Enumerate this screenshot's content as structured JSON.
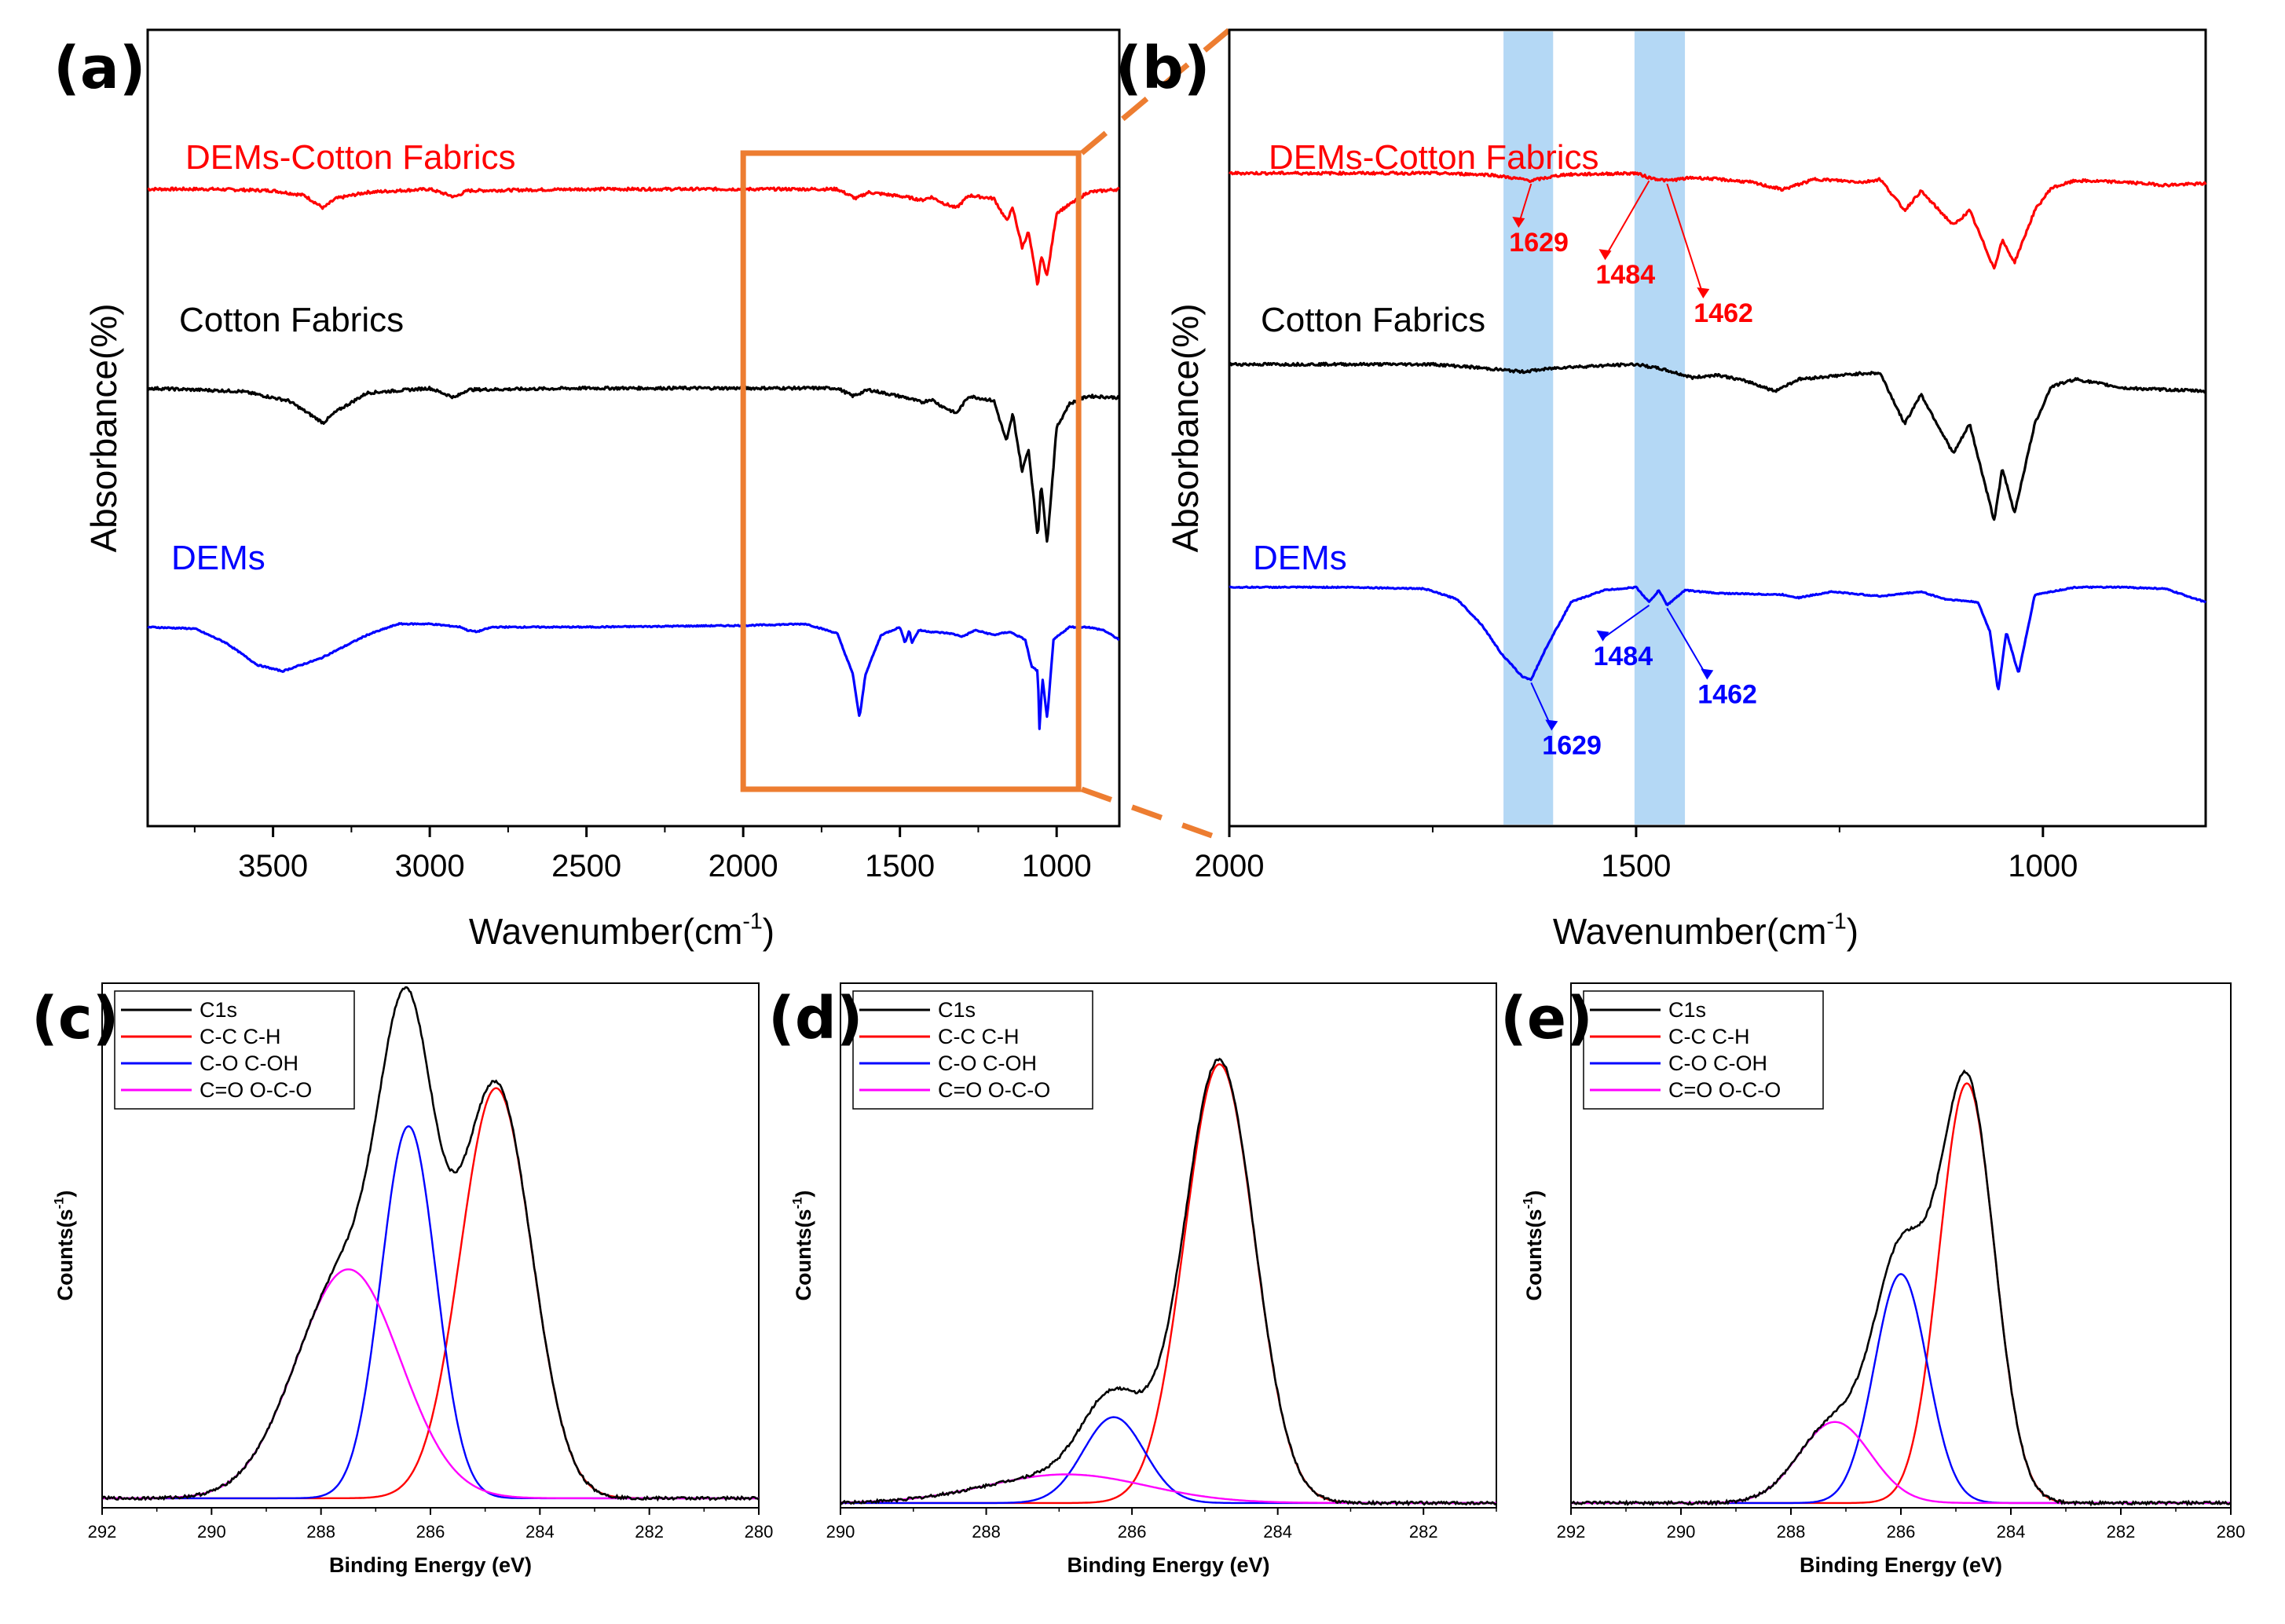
{
  "chart_data": [
    {
      "id": "a",
      "type": "line",
      "panel_label": "(a)",
      "title": "",
      "xlabel": "Wavenumber(cm",
      "xlabel_sup": "-1",
      "xlabel_suffix": ")",
      "ylabel": "Absorbance(%)",
      "xlim": [
        3900,
        800
      ],
      "xticks": [
        3500,
        3000,
        2500,
        2000,
        1500,
        1000
      ],
      "grid": false,
      "inset_box": {
        "x": [
          2000,
          930
        ],
        "color": "#ed7d31"
      },
      "series": [
        {
          "name": "DEMs-Cotton Fabrics",
          "color": "#ff0000",
          "offset": 0.8,
          "points": [
            [
              3900,
              0
            ],
            [
              3700,
              0
            ],
            [
              3500,
              -0.01
            ],
            [
              3400,
              -0.04
            ],
            [
              3340,
              -0.12
            ],
            [
              3300,
              -0.06
            ],
            [
              3200,
              -0.02
            ],
            [
              3000,
              0
            ],
            [
              2920,
              -0.05
            ],
            [
              2880,
              -0.01
            ],
            [
              2500,
              0
            ],
            [
              2000,
              0
            ],
            [
              1700,
              0
            ],
            [
              1640,
              -0.06
            ],
            [
              1600,
              -0.02
            ],
            [
              1480,
              -0.05
            ],
            [
              1430,
              -0.07
            ],
            [
              1400,
              -0.05
            ],
            [
              1360,
              -0.09
            ],
            [
              1320,
              -0.12
            ],
            [
              1280,
              -0.04
            ],
            [
              1200,
              -0.06
            ],
            [
              1160,
              -0.2
            ],
            [
              1140,
              -0.12
            ],
            [
              1110,
              -0.37
            ],
            [
              1090,
              -0.27
            ],
            [
              1060,
              -0.62
            ],
            [
              1050,
              -0.42
            ],
            [
              1030,
              -0.55
            ],
            [
              1000,
              -0.15
            ],
            [
              960,
              -0.1
            ],
            [
              900,
              -0.02
            ],
            [
              800,
              0
            ]
          ]
        },
        {
          "name": "Cotton Fabrics",
          "color": "#000000",
          "offset": 0.55,
          "points": [
            [
              3900,
              0
            ],
            [
              3600,
              -0.02
            ],
            [
              3450,
              -0.08
            ],
            [
              3340,
              -0.22
            ],
            [
              3300,
              -0.15
            ],
            [
              3200,
              -0.03
            ],
            [
              3000,
              0
            ],
            [
              2920,
              -0.06
            ],
            [
              2880,
              -0.01
            ],
            [
              2500,
              0
            ],
            [
              2000,
              0
            ],
            [
              1700,
              0
            ],
            [
              1650,
              -0.05
            ],
            [
              1600,
              -0.01
            ],
            [
              1480,
              -0.06
            ],
            [
              1430,
              -0.09
            ],
            [
              1400,
              -0.07
            ],
            [
              1370,
              -0.11
            ],
            [
              1320,
              -0.16
            ],
            [
              1280,
              -0.05
            ],
            [
              1200,
              -0.08
            ],
            [
              1160,
              -0.34
            ],
            [
              1140,
              -0.16
            ],
            [
              1110,
              -0.53
            ],
            [
              1090,
              -0.38
            ],
            [
              1060,
              -0.95
            ],
            [
              1050,
              -0.6
            ],
            [
              1030,
              -0.98
            ],
            [
              1000,
              -0.25
            ],
            [
              960,
              -0.1
            ],
            [
              900,
              -0.05
            ],
            [
              800,
              -0.06
            ]
          ]
        },
        {
          "name": "DEMs",
          "color": "#0000ff",
          "offset": 0.25,
          "points": [
            [
              3900,
              0
            ],
            [
              3750,
              -0.01
            ],
            [
              3650,
              -0.1
            ],
            [
              3550,
              -0.24
            ],
            [
              3470,
              -0.28
            ],
            [
              3350,
              -0.2
            ],
            [
              3200,
              -0.05
            ],
            [
              3100,
              0.02
            ],
            [
              3000,
              0.02
            ],
            [
              2900,
              0
            ],
            [
              2880,
              -0.02
            ],
            [
              2850,
              -0.03
            ],
            [
              2800,
              0
            ],
            [
              2500,
              0
            ],
            [
              2000,
              0.01
            ],
            [
              1800,
              0.02
            ],
            [
              1700,
              -0.04
            ],
            [
              1650,
              -0.3
            ],
            [
              1629,
              -0.58
            ],
            [
              1610,
              -0.3
            ],
            [
              1560,
              -0.05
            ],
            [
              1500,
              0
            ],
            [
              1484,
              -0.1
            ],
            [
              1470,
              -0.02
            ],
            [
              1462,
              -0.1
            ],
            [
              1440,
              -0.02
            ],
            [
              1400,
              -0.03
            ],
            [
              1340,
              -0.04
            ],
            [
              1300,
              -0.06
            ],
            [
              1260,
              -0.02
            ],
            [
              1200,
              -0.05
            ],
            [
              1150,
              -0.03
            ],
            [
              1100,
              -0.08
            ],
            [
              1080,
              -0.25
            ],
            [
              1060,
              -0.28
            ],
            [
              1055,
              -0.65
            ],
            [
              1045,
              -0.33
            ],
            [
              1030,
              -0.58
            ],
            [
              1010,
              -0.08
            ],
            [
              960,
              0
            ],
            [
              900,
              0
            ],
            [
              850,
              -0.02
            ],
            [
              800,
              -0.08
            ]
          ]
        }
      ],
      "peak_labels": []
    },
    {
      "id": "b",
      "type": "line",
      "panel_label": "(b)",
      "title": "",
      "xlabel": "Wavenumber(cm",
      "xlabel_sup": "-1",
      "xlabel_suffix": ")",
      "ylabel": "Absorbance(%)",
      "xlim": [
        2000,
        800
      ],
      "xticks": [
        2000,
        1500,
        1000
      ],
      "grid": false,
      "highlight_bands": [
        [
          1663,
          1602
        ],
        [
          1502,
          1440
        ]
      ],
      "series": [
        {
          "name": "DEMs-Cotton Fabrics",
          "color": "#ff0000",
          "offset": 0.82,
          "points": [
            [
              2000,
              0
            ],
            [
              1750,
              0
            ],
            [
              1680,
              -0.01
            ],
            [
              1629,
              -0.05
            ],
            [
              1590,
              -0.01
            ],
            [
              1500,
              0
            ],
            [
              1484,
              -0.03
            ],
            [
              1462,
              -0.05
            ],
            [
              1430,
              -0.03
            ],
            [
              1400,
              -0.04
            ],
            [
              1360,
              -0.06
            ],
            [
              1320,
              -0.11
            ],
            [
              1280,
              -0.04
            ],
            [
              1220,
              -0.06
            ],
            [
              1200,
              -0.04
            ],
            [
              1170,
              -0.25
            ],
            [
              1150,
              -0.12
            ],
            [
              1110,
              -0.35
            ],
            [
              1090,
              -0.25
            ],
            [
              1060,
              -0.64
            ],
            [
              1050,
              -0.45
            ],
            [
              1035,
              -0.6
            ],
            [
              1010,
              -0.25
            ],
            [
              990,
              -0.1
            ],
            [
              960,
              -0.05
            ],
            [
              900,
              -0.06
            ],
            [
              850,
              -0.08
            ],
            [
              800,
              -0.07
            ]
          ]
        },
        {
          "name": "Cotton Fabrics",
          "color": "#000000",
          "offset": 0.58,
          "points": [
            [
              2000,
              0
            ],
            [
              1750,
              0
            ],
            [
              1700,
              -0.02
            ],
            [
              1640,
              -0.05
            ],
            [
              1590,
              -0.02
            ],
            [
              1500,
              0
            ],
            [
              1470,
              -0.03
            ],
            [
              1430,
              -0.09
            ],
            [
              1400,
              -0.07
            ],
            [
              1360,
              -0.12
            ],
            [
              1330,
              -0.18
            ],
            [
              1300,
              -0.1
            ],
            [
              1260,
              -0.08
            ],
            [
              1220,
              -0.06
            ],
            [
              1200,
              -0.06
            ],
            [
              1170,
              -0.4
            ],
            [
              1150,
              -0.2
            ],
            [
              1110,
              -0.6
            ],
            [
              1090,
              -0.4
            ],
            [
              1060,
              -1.05
            ],
            [
              1050,
              -0.7
            ],
            [
              1035,
              -1.0
            ],
            [
              1010,
              -0.4
            ],
            [
              990,
              -0.15
            ],
            [
              960,
              -0.1
            ],
            [
              900,
              -0.16
            ],
            [
              850,
              -0.17
            ],
            [
              800,
              -0.18
            ]
          ]
        },
        {
          "name": "DEMs",
          "color": "#0000ff",
          "offset": 0.3,
          "points": [
            [
              2000,
              0
            ],
            [
              1850,
              0
            ],
            [
              1760,
              -0.01
            ],
            [
              1720,
              -0.08
            ],
            [
              1690,
              -0.25
            ],
            [
              1665,
              -0.45
            ],
            [
              1640,
              -0.6
            ],
            [
              1629,
              -0.62
            ],
            [
              1610,
              -0.4
            ],
            [
              1580,
              -0.1
            ],
            [
              1540,
              -0.02
            ],
            [
              1500,
              0
            ],
            [
              1484,
              -0.1
            ],
            [
              1472,
              -0.02
            ],
            [
              1462,
              -0.12
            ],
            [
              1440,
              -0.02
            ],
            [
              1400,
              -0.04
            ],
            [
              1320,
              -0.05
            ],
            [
              1300,
              -0.07
            ],
            [
              1260,
              -0.03
            ],
            [
              1200,
              -0.06
            ],
            [
              1150,
              -0.03
            ],
            [
              1120,
              -0.08
            ],
            [
              1080,
              -0.1
            ],
            [
              1065,
              -0.3
            ],
            [
              1055,
              -0.7
            ],
            [
              1045,
              -0.3
            ],
            [
              1030,
              -0.58
            ],
            [
              1010,
              -0.05
            ],
            [
              960,
              0
            ],
            [
              900,
              0
            ],
            [
              850,
              -0.01
            ],
            [
              800,
              -0.1
            ]
          ]
        }
      ],
      "peak_labels": [
        {
          "text": "1629",
          "color": "#ff0000",
          "wn": 1629,
          "series": "DEMs-Cotton Fabrics"
        },
        {
          "text": "1484",
          "color": "#ff0000",
          "wn": 1484,
          "series": "DEMs-Cotton Fabrics"
        },
        {
          "text": "1462",
          "color": "#ff0000",
          "wn": 1462,
          "series": "DEMs-Cotton Fabrics"
        },
        {
          "text": "1484",
          "color": "#0000ff",
          "wn": 1484,
          "series": "DEMs"
        },
        {
          "text": "1462",
          "color": "#0000ff",
          "wn": 1462,
          "series": "DEMs"
        },
        {
          "text": "1629",
          "color": "#0000ff",
          "wn": 1629,
          "series": "DEMs"
        }
      ]
    },
    {
      "id": "c",
      "type": "line",
      "panel_label": "(c)",
      "title": "",
      "xlabel": "Binding Energy (eV)",
      "ylabel": "Counts(s",
      "ylabel_sup": "-1",
      "ylabel_suffix": ")",
      "xlim": [
        292,
        280
      ],
      "xticks": [
        292,
        290,
        288,
        286,
        284,
        282,
        280
      ],
      "ylim": [
        0,
        1.1
      ],
      "legend": [
        "C1s",
        "C-C C-H",
        "C-O C-OH",
        "C=O O-C-O"
      ],
      "legend_colors": [
        "#000000",
        "#ff0000",
        "#0000ff",
        "#ff00ff"
      ],
      "legend_position": "top-left",
      "baseline": 0.02,
      "components": [
        {
          "name": "C-C C-H",
          "color": "#ff0000",
          "center": 284.8,
          "amp": 0.86,
          "sigma": 0.65
        },
        {
          "name": "C-O C-OH",
          "color": "#0000ff",
          "center": 286.4,
          "amp": 0.78,
          "sigma": 0.5
        },
        {
          "name": "C=O O-C-O",
          "color": "#ff00ff",
          "center": 287.5,
          "amp": 0.48,
          "sigma": 0.95
        }
      ]
    },
    {
      "id": "d",
      "type": "line",
      "panel_label": "(d)",
      "title": "",
      "xlabel": "Binding Energy (eV)",
      "ylabel": "Counts(s",
      "ylabel_sup": "-1",
      "ylabel_suffix": ")",
      "xlim": [
        290,
        281
      ],
      "xticks": [
        290,
        288,
        286,
        284,
        282
      ],
      "ylim": [
        0,
        1.1
      ],
      "legend": [
        "C1s",
        "C-C C-H",
        "C-O C-OH",
        "C=O O-C-O"
      ],
      "legend_colors": [
        "#000000",
        "#ff0000",
        "#0000ff",
        "#ff00ff"
      ],
      "legend_position": "top-left",
      "baseline": 0.01,
      "components": [
        {
          "name": "C-C C-H",
          "color": "#ff0000",
          "center": 284.8,
          "amp": 0.92,
          "sigma": 0.48
        },
        {
          "name": "C-O C-OH",
          "color": "#0000ff",
          "center": 286.25,
          "amp": 0.18,
          "sigma": 0.42
        },
        {
          "name": "C=O O-C-O",
          "color": "#ff00ff",
          "center": 286.9,
          "amp": 0.06,
          "sigma": 1.1
        }
      ]
    },
    {
      "id": "e",
      "type": "line",
      "panel_label": "(e)",
      "title": "",
      "xlabel": "Binding Energy (eV)",
      "ylabel": "Counts(s",
      "ylabel_sup": "-1",
      "ylabel_suffix": ")",
      "xlim": [
        292,
        280
      ],
      "xticks": [
        292,
        290,
        288,
        286,
        284,
        282,
        280
      ],
      "ylim": [
        0,
        1.1
      ],
      "legend": [
        "C1s",
        "C-C C-H",
        "C-O C-OH",
        "C=O O-C-O"
      ],
      "legend_colors": [
        "#000000",
        "#ff0000",
        "#0000ff",
        "#ff00ff"
      ],
      "legend_position": "top-left",
      "baseline": 0.01,
      "components": [
        {
          "name": "C-C C-H",
          "color": "#ff0000",
          "center": 284.8,
          "amp": 0.88,
          "sigma": 0.5
        },
        {
          "name": "C-O C-OH",
          "color": "#0000ff",
          "center": 286.0,
          "amp": 0.48,
          "sigma": 0.48
        },
        {
          "name": "C=O O-C-O",
          "color": "#ff00ff",
          "center": 287.2,
          "amp": 0.17,
          "sigma": 0.65
        }
      ]
    }
  ]
}
